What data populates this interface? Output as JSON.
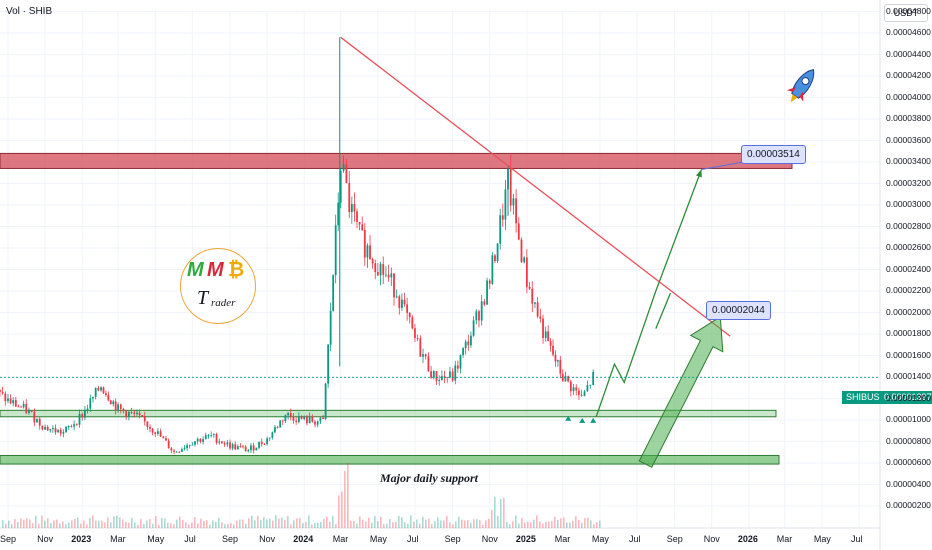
{
  "header": {
    "volume_label": "Vol · SHIB",
    "quote_unit": "USDT"
  },
  "symbol_tag": {
    "symbol": "SHIBUSDT",
    "price": "0.00001397",
    "color": "#089981"
  },
  "callouts": {
    "upper_target": "0.00003514",
    "lower_target": "0.00002044"
  },
  "zones": {
    "support_label": "Major daily support"
  },
  "logo": {
    "m1": "M",
    "m2": "M",
    "coin": "₿",
    "t": "T",
    "rader": "rader"
  },
  "colors": {
    "up": "#089981",
    "down": "#f23645",
    "resistance": "#d14b55",
    "support": "#4caf50",
    "trendline": "#e8505b",
    "projection": "#2e8b3a"
  },
  "chart_data": {
    "type": "candlestick",
    "symbol": "SHIBUSDT",
    "timeframe": "daily",
    "y_axis": {
      "scale": "linear",
      "unit": "USDT",
      "range": [
        1.5e-06,
        5.1e-06
      ],
      "ticks": [
        "0.00004800",
        "0.00004600",
        "0.00004400",
        "0.00004200",
        "0.00004000",
        "0.00003800",
        "0.00003600",
        "0.00003400",
        "0.00003200",
        "0.00003000",
        "0.00002800",
        "0.00002600",
        "0.00002400",
        "0.00002200",
        "0.00002000",
        "0.00001800",
        "0.00001600",
        "0.00001400",
        "0.00001200",
        "0.00001000",
        "0.00000800",
        "0.00000600",
        "0.00000400",
        "0.00000200"
      ],
      "tick_values": [
        4.8e-05,
        4.6e-05,
        4.4e-05,
        4.2e-05,
        4e-05,
        3.8e-05,
        3.6e-05,
        3.4e-05,
        3.2e-05,
        3e-05,
        2.8e-05,
        2.6e-05,
        2.4e-05,
        2.2e-05,
        2e-05,
        1.8e-05,
        1.6e-05,
        1.4e-05,
        1.2e-05,
        1e-05,
        8e-06,
        6e-06,
        4e-06,
        2e-06
      ]
    },
    "x_axis": {
      "labels": [
        "Sep",
        "Nov",
        "2023",
        "Mar",
        "May",
        "Jul",
        "Sep",
        "Nov",
        "2024",
        "Mar",
        "May",
        "Jul",
        "Sep",
        "Nov",
        "2025",
        "Mar",
        "May",
        "Jul",
        "Sep",
        "Nov",
        "2026",
        "Mar",
        "May",
        "Jul"
      ],
      "dates": [
        "2022-09",
        "2022-11",
        "2023-01",
        "2023-03",
        "2023-05",
        "2023-07",
        "2023-09",
        "2023-11",
        "2024-01",
        "2024-03",
        "2024-05",
        "2024-07",
        "2024-09",
        "2024-11",
        "2025-01",
        "2025-03",
        "2025-05",
        "2025-07",
        "2025-09",
        "2025-11",
        "2026-01",
        "2026-03",
        "2026-05",
        "2026-07"
      ]
    },
    "price_path": [
      [
        "2022-08",
        1.3e-05
      ],
      [
        "2022-09",
        1.18e-05
      ],
      [
        "2022-10",
        1.09e-05
      ],
      [
        "2022-11",
        9.3e-06
      ],
      [
        "2022-12",
        8.8e-06
      ],
      [
        "2023-01",
        1.05e-05
      ],
      [
        "2023-02",
        1.32e-05
      ],
      [
        "2023-03",
        1.1e-05
      ],
      [
        "2023-04",
        1.03e-05
      ],
      [
        "2023-05",
        9e-06
      ],
      [
        "2023-06",
        7e-06
      ],
      [
        "2023-07",
        8e-06
      ],
      [
        "2023-08",
        8.5e-06
      ],
      [
        "2023-09",
        7.6e-06
      ],
      [
        "2023-10",
        7.2e-06
      ],
      [
        "2023-11",
        8.2e-06
      ],
      [
        "2023-12",
        1.05e-05
      ],
      [
        "2024-01",
        1e-05
      ],
      [
        "2024-02",
        9.8e-06
      ],
      [
        "2024-03",
        3.4e-05
      ],
      [
        "2024-03-15",
        3e-05
      ],
      [
        "2024-04",
        2.7e-05
      ],
      [
        "2024-05",
        2.45e-05
      ],
      [
        "2024-06",
        2.2e-05
      ],
      [
        "2024-07",
        1.75e-05
      ],
      [
        "2024-08",
        1.4e-05
      ],
      [
        "2024-09",
        1.4e-05
      ],
      [
        "2024-10",
        1.8e-05
      ],
      [
        "2024-11",
        2.3e-05
      ],
      [
        "2024-12",
        3.2e-05
      ],
      [
        "2025-01",
        2.3e-05
      ],
      [
        "2025-02",
        1.75e-05
      ],
      [
        "2025-03",
        1.4e-05
      ],
      [
        "2025-04",
        1.2e-05
      ],
      [
        "2025-04-20",
        1.4e-05
      ]
    ],
    "wicks": {
      "high_2024_03": 4.56e-05,
      "high_2024_12": 3.35e-05
    },
    "resistance_zone": {
      "from": 3.34e-05,
      "to": 3.48e-05
    },
    "support_zones": [
      {
        "from": 1.03e-05,
        "to": 1.09e-05
      },
      {
        "from": 5.9e-06,
        "to": 6.7e-06,
        "label": "Major daily support"
      }
    ],
    "trendline": {
      "from": [
        "2024-03",
        4.56e-05
      ],
      "to": [
        "2025-12",
        1.78e-05
      ]
    },
    "projection_path": [
      [
        "2025-04-25",
        1.03e-05
      ],
      [
        "2025-05-25",
        1.52e-05
      ],
      [
        "2025-06-10",
        1.35e-05
      ],
      [
        "2025-08-01",
        2.2e-05
      ],
      [
        "2025-10-15",
        3.33e-05
      ]
    ],
    "price_marker": 1.397e-05,
    "targets": [
      3.514e-05,
      2.044e-05
    ]
  }
}
